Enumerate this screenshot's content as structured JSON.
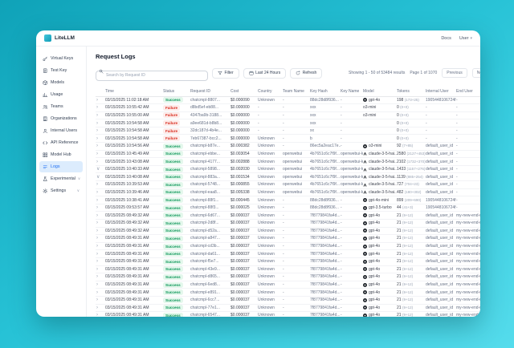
{
  "app": {
    "logo_text": "LiteLLM",
    "topnav": {
      "docs": "Docs",
      "user": "User"
    }
  },
  "sidebar": {
    "items": [
      {
        "label": "Virtual Keys",
        "icon": "key-icon",
        "active": false,
        "chevron": false
      },
      {
        "label": "Test Key",
        "icon": "test-key-icon",
        "active": false,
        "chevron": false
      },
      {
        "label": "Models",
        "icon": "models-icon",
        "active": false,
        "chevron": false
      },
      {
        "label": "Usage",
        "icon": "usage-icon",
        "active": false,
        "chevron": false
      },
      {
        "label": "Teams",
        "icon": "teams-icon",
        "active": false,
        "chevron": false
      },
      {
        "label": "Organizations",
        "icon": "organizations-icon",
        "active": false,
        "chevron": false
      },
      {
        "label": "Internal Users",
        "icon": "internal-users-icon",
        "active": false,
        "chevron": false
      },
      {
        "label": "API Reference",
        "icon": "api-reference-icon",
        "active": false,
        "chevron": false
      },
      {
        "label": "Model Hub",
        "icon": "model-hub-icon",
        "active": false,
        "chevron": false
      },
      {
        "label": "Logs",
        "icon": "logs-icon",
        "active": true,
        "chevron": false
      },
      {
        "label": "Experimental",
        "icon": "experimental-icon",
        "active": false,
        "chevron": true
      },
      {
        "label": "Settings",
        "icon": "settings-icon",
        "active": false,
        "chevron": true
      }
    ]
  },
  "main": {
    "title": "Request Logs",
    "toolbar": {
      "search_placeholder": "Search by Request ID",
      "filter_label": "Filter",
      "range_label": "Last 24 Hours",
      "refresh_label": "Refresh"
    },
    "pagination": {
      "showing": "Showing 1 - 50 of 53484 results",
      "page": "Page 1 of 1070",
      "previous_label": "Previous",
      "next_label": "Next"
    },
    "table": {
      "columns": [
        "Time",
        "Status",
        "Request ID",
        "Cost",
        "Country",
        "Team Name",
        "Key Hash",
        "Key Name",
        "Model",
        "Tokens",
        "Internal User",
        "End User"
      ],
      "rows": [
        {
          "time": "03/15/2025 11:02:18 AM",
          "status": "Success",
          "request_id": "chatcmpl-8807...",
          "cost": "$0.000090",
          "country": "Unknown",
          "team": "-",
          "key_hash": "88dc28d8f936...",
          "key_name": "-",
          "model": "gpt-4o",
          "provider": "openai",
          "tokens": "198",
          "tokens_detail": "(173+25)",
          "internal_user": "1905448106724f...",
          "end_user": "-",
          "expanded": false
        },
        {
          "time": "03/15/2025 10:55:42 AM",
          "status": "Failure",
          "request_id": "d8bd5ef-eb88...",
          "cost": "$0.000000",
          "country": "-",
          "team": "-",
          "key_hash": "xxx",
          "key_name": "-",
          "model": "o3-mini",
          "provider": "",
          "tokens": "0",
          "tokens_detail": "(0+0)",
          "internal_user": "-",
          "end_user": "-",
          "expanded": false
        },
        {
          "time": "03/15/2025 10:55:00 AM",
          "status": "Failure",
          "request_id": "4347ba9b-3188...",
          "cost": "$0.000000",
          "country": "-",
          "team": "-",
          "key_hash": "xxx",
          "key_name": "-",
          "model": "o3-mini",
          "provider": "",
          "tokens": "0",
          "tokens_detail": "(0+0)",
          "internal_user": "-",
          "end_user": "-",
          "expanded": false
        },
        {
          "time": "03/15/2025 10:54:58 AM",
          "status": "Failure",
          "request_id": "a9ee681d-b8b8...",
          "cost": "$0.000000",
          "country": "-",
          "team": "-",
          "key_hash": "xxx",
          "key_name": "-",
          "model": "",
          "provider": "",
          "tokens": "0",
          "tokens_detail": "(0+0)",
          "internal_user": "-",
          "end_user": "-",
          "expanded": false
        },
        {
          "time": "03/15/2025 10:54:58 AM",
          "status": "Failure",
          "request_id": "32dc187d-4b4e...",
          "cost": "$0.000000",
          "country": "-",
          "team": "-",
          "key_hash": "xx",
          "key_name": "-",
          "model": "",
          "provider": "",
          "tokens": "0",
          "tokens_detail": "(0+0)",
          "internal_user": "-",
          "end_user": "-",
          "expanded": false
        },
        {
          "time": "03/15/2025 10:54:58 AM",
          "status": "Failure",
          "request_id": "7eb67387-bcc2...",
          "cost": "$0.000000",
          "country": "Unknown",
          "team": "-",
          "key_hash": "b",
          "key_name": "-",
          "model": "",
          "provider": "",
          "tokens": "0",
          "tokens_detail": "(0+0)",
          "internal_user": "-",
          "end_user": "-",
          "expanded": false
        },
        {
          "time": "03/15/2025 10:54:56 AM",
          "status": "Success",
          "request_id": "chatcmpl-b87e...",
          "cost": "$0.000382",
          "country": "Unknown",
          "team": "-",
          "key_hash": "86ec5a2eac17e...",
          "key_name": "-",
          "model": "o3-mini",
          "provider": "openai",
          "tokens": "92",
          "tokens_detail": "(7+85)",
          "internal_user": "default_user_id",
          "end_user": "-",
          "expanded": false
        },
        {
          "time": "03/15/2025 10:45:49 AM",
          "status": "Success",
          "request_id": "chatcmpl-ebbe...",
          "cost": "$0.003054",
          "country": "Unknown",
          "team": "openwebui",
          "key_hash": "4b7651c6c7f9f...",
          "key_name": "openwebui-key-2",
          "model": "claude-3-5-hai...",
          "provider": "anthropic",
          "tokens": "2580",
          "tokens_detail": "(2127+453)",
          "internal_user": "default_user_id",
          "end_user": "-",
          "expanded": false
        },
        {
          "time": "03/15/2025 10:43:08 AM",
          "status": "Success",
          "request_id": "chatcmpl-4177...",
          "cost": "$0.002888",
          "country": "Unknown",
          "team": "openwebui",
          "key_hash": "4b7651c6c7f9f...",
          "key_name": "openwebui-key-2",
          "model": "claude-3-5-hai...",
          "provider": "anthropic",
          "tokens": "2102",
          "tokens_detail": "(1732+370)",
          "internal_user": "default_user_id",
          "end_user": "-",
          "expanded": false
        },
        {
          "time": "03/15/2025 10:40:33 AM",
          "status": "Success",
          "request_id": "chatcmpl-5898...",
          "cost": "$0.002030",
          "country": "Unknown",
          "team": "openwebui",
          "key_hash": "4b7651c6c7f9f...",
          "key_name": "openwebui-key-2",
          "model": "claude-3-5-hai...",
          "provider": "anthropic",
          "tokens": "1433",
          "tokens_detail": "(1157+276)",
          "internal_user": "default_user_id",
          "end_user": "-",
          "expanded": true
        },
        {
          "time": "03/15/2025 10:40:08 AM",
          "status": "Success",
          "request_id": "chatcmpl-883a...",
          "cost": "$0.001534",
          "country": "Unknown",
          "team": "openwebui",
          "key_hash": "4b7651c6c7f9f...",
          "key_name": "openwebui-key-2",
          "model": "claude-3-5-hai...",
          "provider": "anthropic",
          "tokens": "1139",
          "tokens_detail": "(885+254)",
          "internal_user": "default_user_id",
          "end_user": "-",
          "expanded": true
        },
        {
          "time": "03/15/2025 10:39:53 AM",
          "status": "Success",
          "request_id": "chatcmpl-5748...",
          "cost": "$0.000855",
          "country": "Unknown",
          "team": "openwebui",
          "key_hash": "4b7651c6c7f9f...",
          "key_name": "openwebui-key-2",
          "model": "claude-3-5-hai...",
          "provider": "anthropic",
          "tokens": "727",
          "tokens_detail": "(704+23)",
          "internal_user": "default_user_id",
          "end_user": "-",
          "expanded": false
        },
        {
          "time": "03/15/2025 10:39:46 AM",
          "status": "Success",
          "request_id": "chatcmpl-eaa8...",
          "cost": "$0.005338",
          "country": "Unknown",
          "team": "openwebui",
          "key_hash": "4b7651c6c7f9f...",
          "key_name": "openwebui-key-2",
          "model": "claude-3-5-hai...",
          "provider": "anthropic",
          "tokens": "482",
          "tokens_detail": "(180+302)",
          "internal_user": "default_user_id",
          "end_user": "-",
          "expanded": false
        },
        {
          "time": "03/15/2025 10:38:41 AM",
          "status": "Success",
          "request_id": "chatcmpl-88f1...",
          "cost": "$0.000445",
          "country": "Unknown",
          "team": "-",
          "key_hash": "88dc28d8f936...",
          "key_name": "-",
          "model": "gpt-4o-mini",
          "provider": "openai",
          "tokens": "899",
          "tokens_detail": "(209+690)",
          "internal_user": "1905448106724f...",
          "end_user": "-",
          "expanded": false
        },
        {
          "time": "03/15/2025 09:53:57 AM",
          "status": "Success",
          "request_id": "chatcmpl-88f3...",
          "cost": "$0.000025",
          "country": "Unknown",
          "team": "-",
          "key_hash": "88dc28d8f936...",
          "key_name": "-",
          "model": "gpt-3.5-turbo",
          "provider": "openai",
          "tokens": "44",
          "tokens_detail": "(41+3)",
          "internal_user": "1905448106724f...",
          "end_user": "-",
          "expanded": false
        },
        {
          "time": "03/15/2025 08:49:32 AM",
          "status": "Success",
          "request_id": "chatcmpl-6d67...",
          "cost": "$0.000037",
          "country": "Unknown",
          "team": "-",
          "key_hash": "7f8779841fa4d...",
          "key_name": "-",
          "model": "gpt-4o",
          "provider": "openai",
          "tokens": "21",
          "tokens_detail": "(9+12)",
          "internal_user": "default_user_id",
          "end_user": "my-new-end-user-1",
          "expanded": false
        },
        {
          "time": "03/15/2025 08:49:32 AM",
          "status": "Success",
          "request_id": "chatcmpl-2d8f...",
          "cost": "$0.000037",
          "country": "Unknown",
          "team": "-",
          "key_hash": "7f8779841fa4d...",
          "key_name": "-",
          "model": "gpt-4o",
          "provider": "openai",
          "tokens": "21",
          "tokens_detail": "(9+12)",
          "internal_user": "default_user_id",
          "end_user": "my-new-end-user-1",
          "expanded": false
        },
        {
          "time": "03/15/2025 08:49:32 AM",
          "status": "Success",
          "request_id": "chatcmpl-d52a...",
          "cost": "$0.000037",
          "country": "Unknown",
          "team": "-",
          "key_hash": "7f8779841fa4d...",
          "key_name": "-",
          "model": "gpt-4o",
          "provider": "openai",
          "tokens": "21",
          "tokens_detail": "(9+12)",
          "internal_user": "default_user_id",
          "end_user": "my-new-end-user-1",
          "expanded": false
        },
        {
          "time": "03/15/2025 08:49:31 AM",
          "status": "Success",
          "request_id": "chatcmpl-a847...",
          "cost": "$0.000037",
          "country": "Unknown",
          "team": "-",
          "key_hash": "7f8779841fa4d...",
          "key_name": "-",
          "model": "gpt-4o",
          "provider": "openai",
          "tokens": "21",
          "tokens_detail": "(9+12)",
          "internal_user": "default_user_id",
          "end_user": "my-new-end-user-1",
          "expanded": false
        },
        {
          "time": "03/15/2025 08:49:31 AM",
          "status": "Success",
          "request_id": "chatcmpl-cd3b...",
          "cost": "$0.000037",
          "country": "Unknown",
          "team": "-",
          "key_hash": "7f8779841fa4d...",
          "key_name": "-",
          "model": "gpt-4o",
          "provider": "openai",
          "tokens": "21",
          "tokens_detail": "(9+12)",
          "internal_user": "default_user_id",
          "end_user": "my-new-end-user-1",
          "expanded": false
        },
        {
          "time": "03/15/2025 08:49:31 AM",
          "status": "Success",
          "request_id": "chatcmpl-da61...",
          "cost": "$0.000037",
          "country": "Unknown",
          "team": "-",
          "key_hash": "7f8779841fa4d...",
          "key_name": "-",
          "model": "gpt-4o",
          "provider": "openai",
          "tokens": "21",
          "tokens_detail": "(9+12)",
          "internal_user": "default_user_id",
          "end_user": "my-new-end-user-1",
          "expanded": false
        },
        {
          "time": "03/15/2025 08:49:31 AM",
          "status": "Success",
          "request_id": "chatcmpl-f5e7...",
          "cost": "$0.000037",
          "country": "Unknown",
          "team": "-",
          "key_hash": "7f8779841fa4d...",
          "key_name": "-",
          "model": "gpt-4o",
          "provider": "openai",
          "tokens": "21",
          "tokens_detail": "(9+12)",
          "internal_user": "default_user_id",
          "end_user": "my-new-end-user-1",
          "expanded": false
        },
        {
          "time": "03/15/2025 08:49:31 AM",
          "status": "Success",
          "request_id": "chatcmpl-43e9...",
          "cost": "$0.000037",
          "country": "Unknown",
          "team": "-",
          "key_hash": "7f8779841fa4d...",
          "key_name": "-",
          "model": "gpt-4o",
          "provider": "openai",
          "tokens": "21",
          "tokens_detail": "(9+12)",
          "internal_user": "default_user_id",
          "end_user": "my-new-end-user-1",
          "expanded": false
        },
        {
          "time": "03/15/2025 08:49:31 AM",
          "status": "Success",
          "request_id": "chatcmpl-d865...",
          "cost": "$0.000037",
          "country": "Unknown",
          "team": "-",
          "key_hash": "7f8779841fa4d...",
          "key_name": "-",
          "model": "gpt-4o",
          "provider": "openai",
          "tokens": "21",
          "tokens_detail": "(9+12)",
          "internal_user": "default_user_id",
          "end_user": "my-new-end-user-1",
          "expanded": false
        },
        {
          "time": "03/15/2025 08:49:31 AM",
          "status": "Success",
          "request_id": "chatcmpl-6ed8...",
          "cost": "$0.000037",
          "country": "Unknown",
          "team": "-",
          "key_hash": "7f8779841fa4d...",
          "key_name": "-",
          "model": "gpt-4o",
          "provider": "openai",
          "tokens": "21",
          "tokens_detail": "(9+12)",
          "internal_user": "default_user_id",
          "end_user": "my-new-end-user-1",
          "expanded": false
        },
        {
          "time": "03/15/2025 08:49:31 AM",
          "status": "Success",
          "request_id": "chatcmpl-e891...",
          "cost": "$0.000037",
          "country": "Unknown",
          "team": "-",
          "key_hash": "7f8779841fa4d...",
          "key_name": "-",
          "model": "gpt-4o",
          "provider": "openai",
          "tokens": "21",
          "tokens_detail": "(9+12)",
          "internal_user": "default_user_id",
          "end_user": "my-new-end-user-1",
          "expanded": false
        },
        {
          "time": "03/15/2025 08:49:31 AM",
          "status": "Success",
          "request_id": "chatcmpl-6cc7...",
          "cost": "$0.000037",
          "country": "Unknown",
          "team": "-",
          "key_hash": "7f8779841fa4d...",
          "key_name": "-",
          "model": "gpt-4o",
          "provider": "openai",
          "tokens": "21",
          "tokens_detail": "(9+12)",
          "internal_user": "default_user_id",
          "end_user": "my-new-end-user-1",
          "expanded": false
        },
        {
          "time": "03/15/2025 08:49:31 AM",
          "status": "Success",
          "request_id": "chatcmpl-77e1...",
          "cost": "$0.000037",
          "country": "Unknown",
          "team": "-",
          "key_hash": "7f8779841fa4d...",
          "key_name": "-",
          "model": "gpt-4o",
          "provider": "openai",
          "tokens": "21",
          "tokens_detail": "(9+12)",
          "internal_user": "default_user_id",
          "end_user": "my-new-end-user-1",
          "expanded": false
        },
        {
          "time": "03/15/2025 08:49:31 AM",
          "status": "Success",
          "request_id": "chatcmpl-6547...",
          "cost": "$0.000037",
          "country": "Unknown",
          "team": "-",
          "key_hash": "7f8779841fa4d...",
          "key_name": "-",
          "model": "gpt-4o",
          "provider": "openai",
          "tokens": "21",
          "tokens_detail": "(9+12)",
          "internal_user": "default_user_id",
          "end_user": "my-new-end-user-1",
          "expanded": false
        },
        {
          "time": "03/15/2025 08:49:31 AM",
          "status": "Success",
          "request_id": "chatcmpl-8968...",
          "cost": "$0.000037",
          "country": "Unknown",
          "team": "-",
          "key_hash": "7f8779841fa4d...",
          "key_name": "-",
          "model": "gpt-4o",
          "provider": "openai",
          "tokens": "21",
          "tokens_detail": "(9+12)",
          "internal_user": "default_user_id",
          "end_user": "my-new-end-user-1",
          "expanded": false
        },
        {
          "time": "03/15/2025 08:49:31 AM",
          "status": "Success",
          "request_id": "chatcmpl-a377...",
          "cost": "$0.000037",
          "country": "Unknown",
          "team": "-",
          "key_hash": "7f8779841fa4d...",
          "key_name": "-",
          "model": "gpt-4o",
          "provider": "openai",
          "tokens": "21",
          "tokens_detail": "(9+12)",
          "internal_user": "default_user_id",
          "end_user": "my-new-end-user-1",
          "expanded": false
        }
      ]
    }
  },
  "colors": {
    "accent_blue": "#1d6ef2",
    "success_green": "#079455",
    "failure_red": "#d92d20",
    "background_teal": "#27c2d6"
  }
}
